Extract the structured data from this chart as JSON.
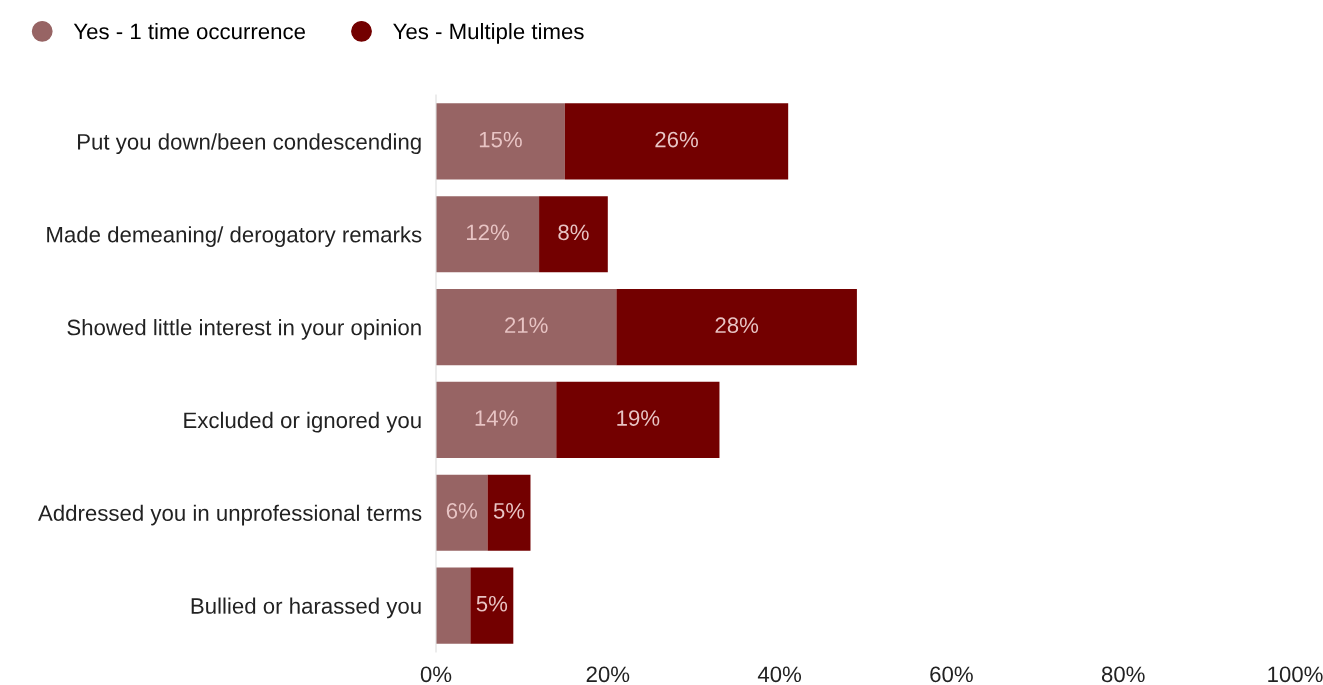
{
  "chart_data": {
    "type": "bar",
    "orientation": "horizontal",
    "stacked": true,
    "categories": [
      "Put you down/been condescending",
      "Made demeaning/ derogatory remarks",
      "Showed little interest in your opinion",
      "Excluded or ignored you",
      "Addressed you in unprofessional terms",
      "Bullied or harassed you"
    ],
    "series": [
      {
        "name": "Yes - 1 time occurrence",
        "color": "#976464",
        "values": [
          15,
          12,
          21,
          14,
          6,
          4
        ],
        "value_labels": [
          "15%",
          "12%",
          "21%",
          "14%",
          "6%",
          null
        ]
      },
      {
        "name": "Yes - Multiple times",
        "color": "#730000",
        "values": [
          26,
          8,
          28,
          19,
          5,
          5
        ],
        "value_labels": [
          "26%",
          "8%",
          "28%",
          "19%",
          "5%",
          "5%"
        ]
      }
    ],
    "xlim": [
      0,
      100
    ],
    "xticks": [
      {
        "value": 0,
        "label": "0%"
      },
      {
        "value": 20,
        "label": "20%"
      },
      {
        "value": 40,
        "label": "40%"
      },
      {
        "value": 60,
        "label": "60%"
      },
      {
        "value": 80,
        "label": "80%"
      },
      {
        "value": 100,
        "label": "100%"
      }
    ],
    "grid": false,
    "legend": "top left"
  }
}
